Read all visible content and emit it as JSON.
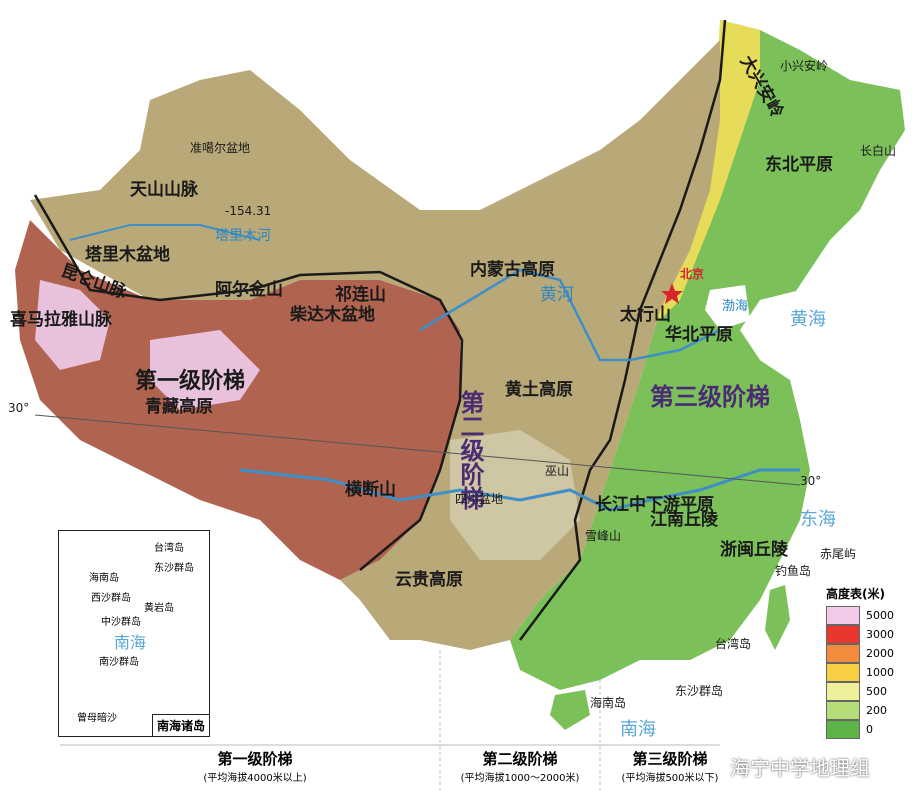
{
  "watermark": "海宁中学地理组",
  "inset": {
    "title": "南海诸岛",
    "labels": [
      "台湾岛",
      "东沙群岛",
      "海南岛",
      "西沙群岛",
      "黄岩岛",
      "中沙群岛",
      "南海",
      "南沙群岛",
      "曾母暗沙"
    ]
  },
  "legend": {
    "title": "高度表(米)",
    "items": [
      {
        "label": "5000",
        "color": "#f2c9e6"
      },
      {
        "label": "3000",
        "color": "#e8372c"
      },
      {
        "label": "2000",
        "color": "#f28b3c"
      },
      {
        "label": "1000",
        "color": "#f6cf43"
      },
      {
        "label": "500",
        "color": "#f1f09a"
      },
      {
        "label": "200",
        "color": "#b6dc78"
      },
      {
        "label": "0",
        "color": "#5cb447"
      }
    ]
  },
  "steps": [
    {
      "name": "第一级阶梯",
      "desc": "(平均海拔4000米以上)"
    },
    {
      "name": "第二级阶梯",
      "desc": "(平均海拔1000～2000米)"
    },
    {
      "name": "第三级阶梯",
      "desc": "(平均海拔500米以下)"
    }
  ],
  "map_labels": {
    "junggar": "准噶尔盆地",
    "tianshan": "天山山脉",
    "depth": "-154.31",
    "tarimriver": "塔里木河",
    "tarim": "塔里木盆地",
    "kunlun": "昆仑山脉",
    "altun": "阿尔金山",
    "qilian": "祁连山",
    "qaidam": "柴达木盆地",
    "step1": "第一级阶梯",
    "qingzang": "青藏高原",
    "himalaya": "喜马拉雅山脉",
    "lat30w": "30°",
    "lat30e": "30°",
    "hengduan": "横断山",
    "step2": "第二级阶梯",
    "mongolia": "内蒙古高原",
    "huanghe": "黄河",
    "loess": "黄土高原",
    "taihang": "太行山",
    "sichuan": "四川盆地",
    "wushan": "巫山",
    "xuefeng": "雪峰山",
    "yungui": "云贵高原",
    "daxing": "大兴安岭",
    "xiaoxing": "小兴安岭",
    "changbai": "长白山",
    "dongbei": "东北平原",
    "beijing": "北京",
    "huabei": "华北平原",
    "bohai": "渤海",
    "huanghai": "黄海",
    "step3": "第三级阶梯",
    "changjiang": "长江中下游平原",
    "jiangnan": "江南丘陵",
    "zhemin": "浙闽丘陵",
    "donghai": "东海",
    "chiwei": "赤尾屿",
    "diaoyu": "钓鱼岛",
    "taiwan": "台湾岛",
    "dongsha": "东沙群岛",
    "hainan": "海南岛",
    "nanhai": "南海"
  }
}
